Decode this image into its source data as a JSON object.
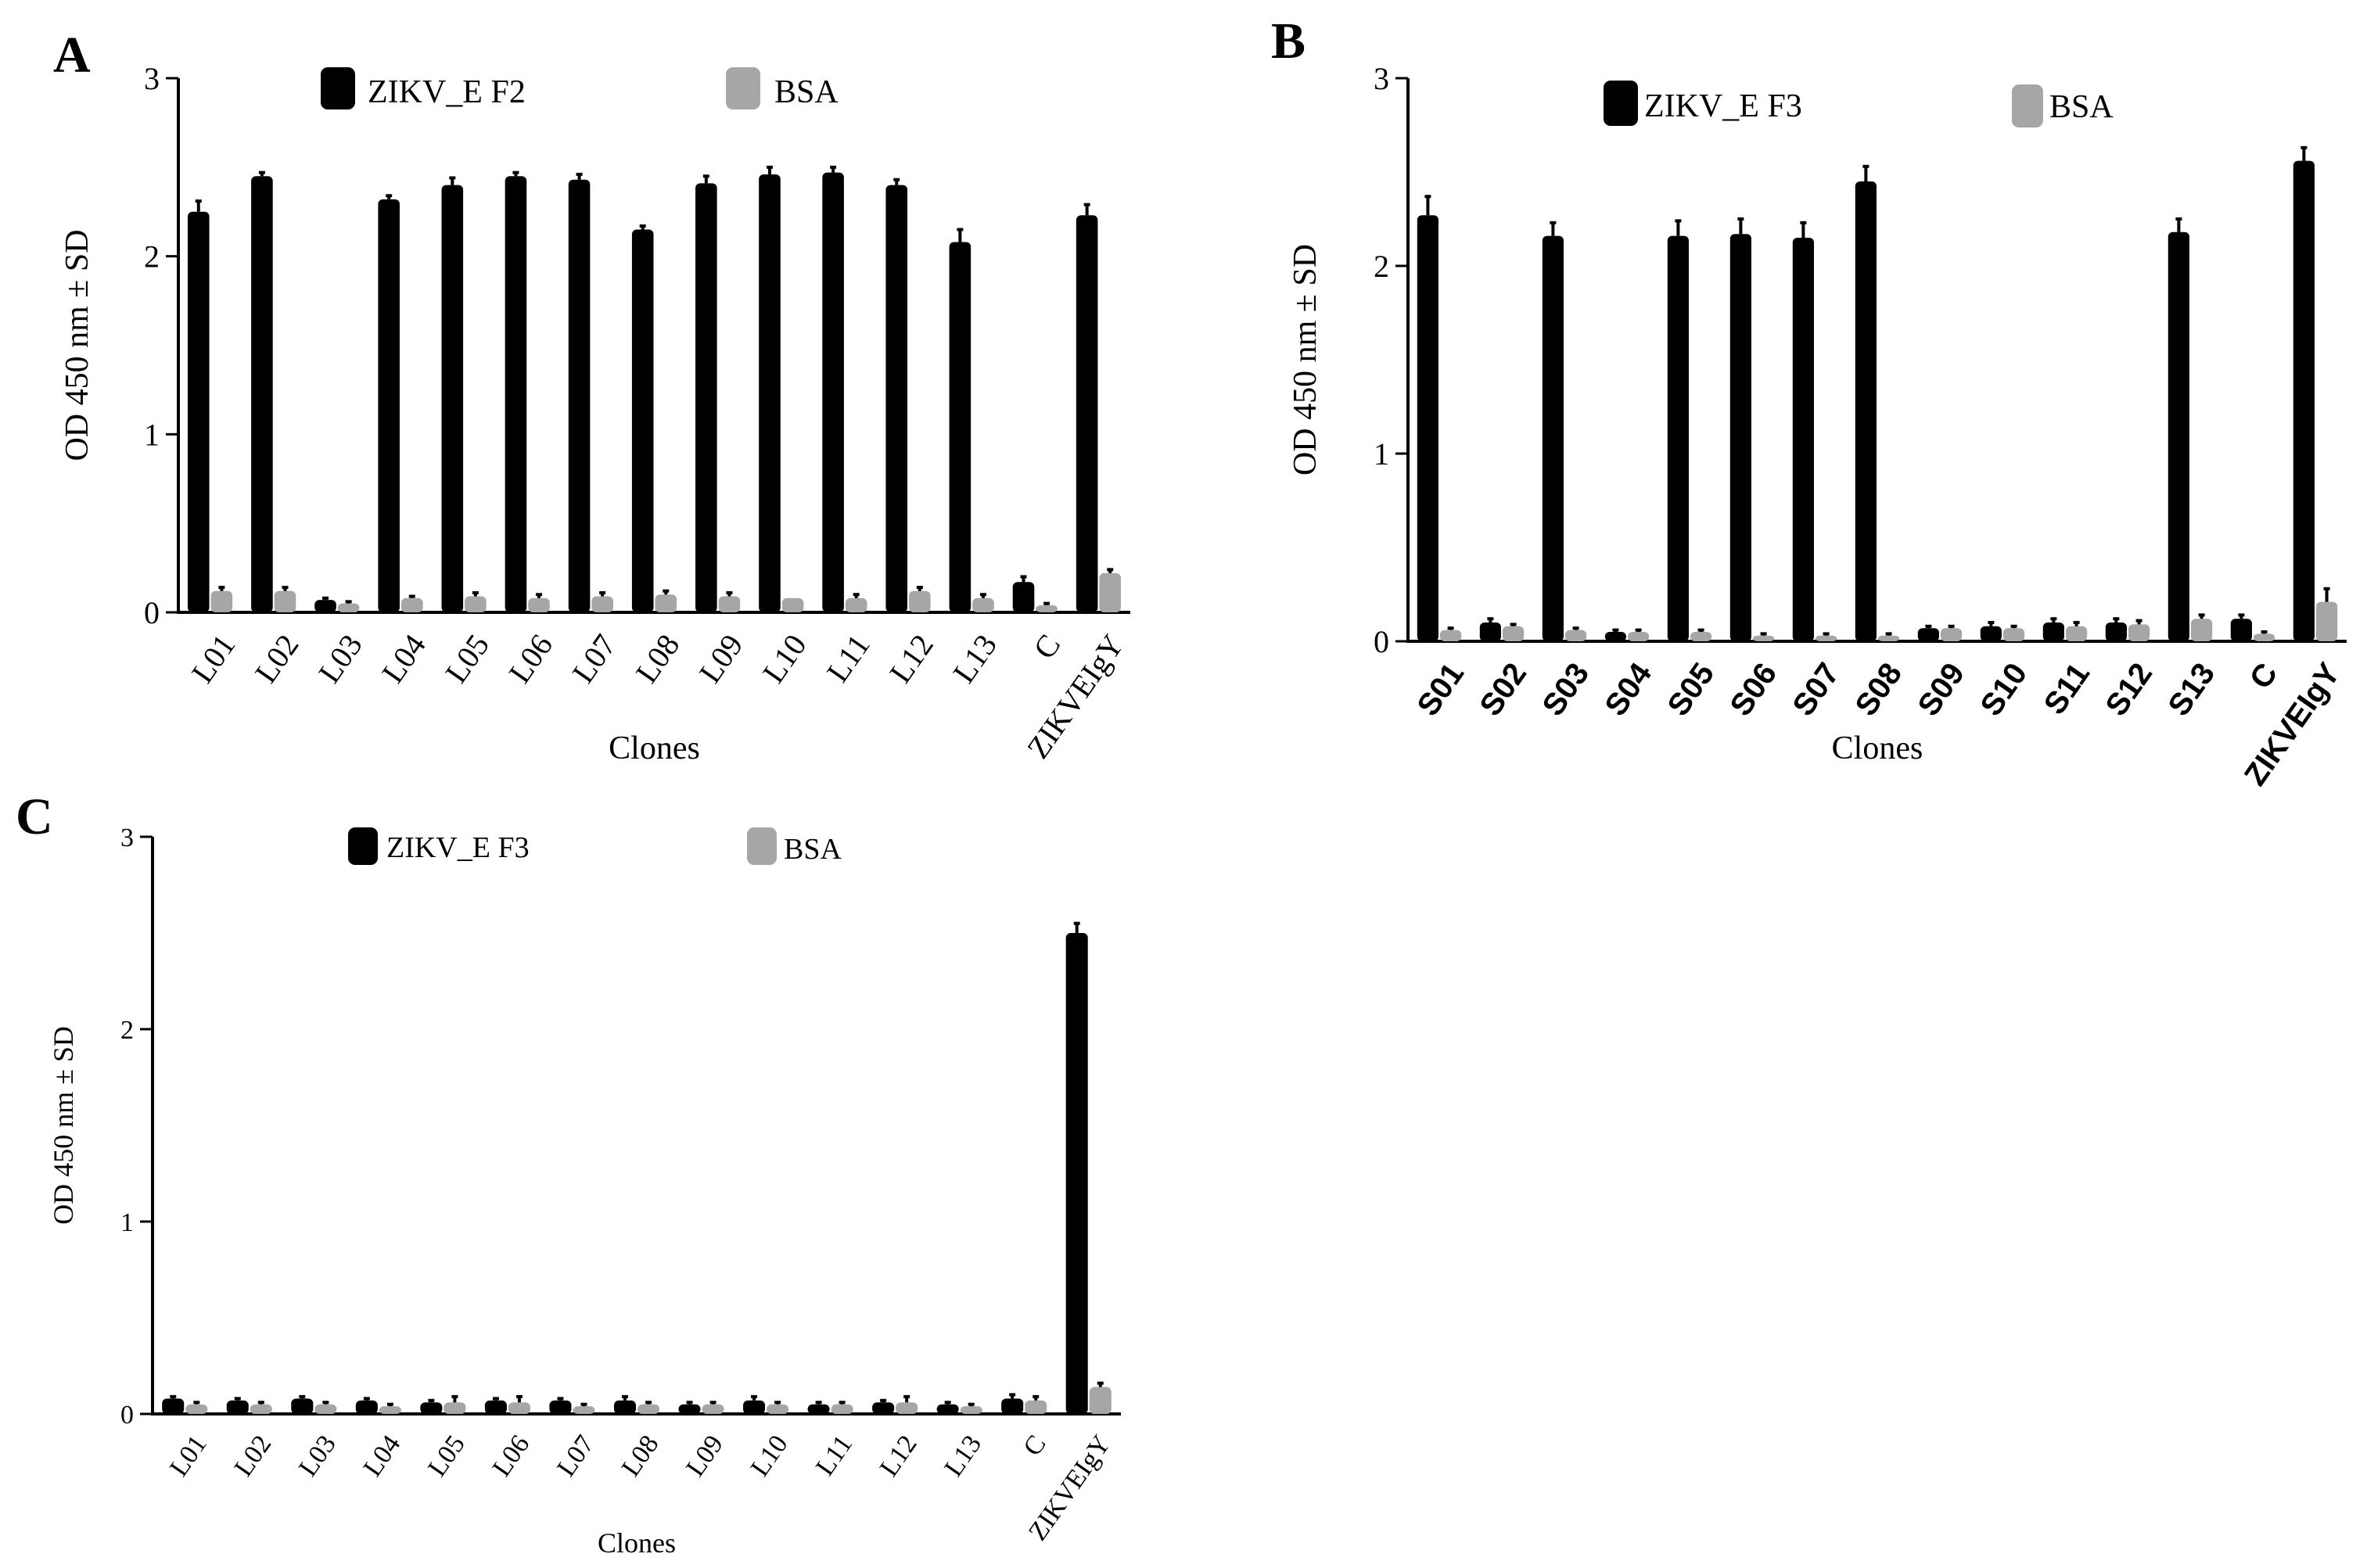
{
  "colors": {
    "primary": "#000000",
    "bsa": "#a6a6a6",
    "axis": "#000000",
    "background": "#ffffff"
  },
  "chart_data": [
    {
      "panel": "A",
      "type": "bar",
      "title": "",
      "xlabel": "Clones",
      "ylabel": "OD 450 nm ± SD",
      "ylim": [
        0,
        3
      ],
      "yticks": [
        "0",
        "1",
        "2",
        "3"
      ],
      "tick_style": "serif",
      "categories": [
        "L01",
        "L02",
        "L03",
        "L04",
        "L05",
        "L06",
        "L07",
        "L08",
        "L09",
        "L10",
        "L11",
        "L12",
        "L13",
        "C",
        "ZIKVEIgY"
      ],
      "series": [
        {
          "name": "ZIKV_E F2",
          "color": "#000000",
          "values": [
            2.25,
            2.45,
            0.07,
            2.32,
            2.4,
            2.45,
            2.43,
            2.15,
            2.41,
            2.46,
            2.47,
            2.4,
            2.08,
            0.17,
            2.23
          ],
          "errors": [
            0.06,
            0.02,
            0.01,
            0.02,
            0.04,
            0.02,
            0.03,
            0.02,
            0.04,
            0.04,
            0.03,
            0.03,
            0.07,
            0.03,
            0.06
          ]
        },
        {
          "name": "BSA",
          "color": "#a6a6a6",
          "values": [
            0.12,
            0.12,
            0.05,
            0.08,
            0.09,
            0.08,
            0.09,
            0.1,
            0.09,
            0.08,
            0.08,
            0.12,
            0.08,
            0.04,
            0.22
          ],
          "errors": [
            0.02,
            0.02,
            0.01,
            0.01,
            0.02,
            0.02,
            0.02,
            0.02,
            0.02,
            0.0,
            0.02,
            0.02,
            0.02,
            0.01,
            0.02
          ]
        }
      ]
    },
    {
      "panel": "B",
      "type": "bar",
      "title": "",
      "xlabel": "Clones",
      "ylabel": "OD 450 nm ± SD",
      "ylim": [
        0,
        3
      ],
      "yticks": [
        "0",
        "1",
        "2",
        "3"
      ],
      "tick_style": "sans-bold",
      "categories": [
        "S01",
        "S02",
        "S03",
        "S04",
        "S05",
        "S06",
        "S07",
        "S08",
        "S09",
        "S10",
        "S11",
        "S12",
        "S13",
        "C",
        "ZIKVEIgY"
      ],
      "series": [
        {
          "name": "ZIKV_E F3",
          "color": "#000000",
          "values": [
            2.27,
            0.1,
            2.16,
            0.05,
            2.16,
            2.17,
            2.15,
            2.45,
            0.07,
            0.08,
            0.1,
            0.1,
            2.18,
            0.12,
            2.56
          ],
          "errors": [
            0.1,
            0.02,
            0.07,
            0.01,
            0.08,
            0.08,
            0.08,
            0.08,
            0.01,
            0.02,
            0.02,
            0.02,
            0.07,
            0.02,
            0.07
          ]
        },
        {
          "name": "BSA",
          "color": "#a6a6a6",
          "values": [
            0.06,
            0.08,
            0.06,
            0.05,
            0.05,
            0.03,
            0.03,
            0.03,
            0.07,
            0.07,
            0.08,
            0.09,
            0.12,
            0.04,
            0.21
          ],
          "errors": [
            0.01,
            0.01,
            0.01,
            0.01,
            0.01,
            0.01,
            0.01,
            0.01,
            0.01,
            0.01,
            0.02,
            0.02,
            0.02,
            0.01,
            0.07
          ]
        }
      ]
    },
    {
      "panel": "C",
      "type": "bar",
      "title": "",
      "xlabel": "Clones",
      "ylabel": "OD 450 nm ± SD",
      "ylim": [
        0,
        3
      ],
      "yticks": [
        "0",
        "1",
        "2",
        "3"
      ],
      "tick_style": "serif",
      "categories": [
        "L01",
        "L02",
        "L03",
        "L04",
        "L05",
        "L06",
        "L07",
        "L08",
        "L09",
        "L10",
        "L11",
        "L12",
        "L13",
        "C",
        "ZIKVEIgY"
      ],
      "series": [
        {
          "name": "ZIKV_E F3",
          "color": "#000000",
          "values": [
            0.08,
            0.07,
            0.08,
            0.07,
            0.06,
            0.07,
            0.07,
            0.07,
            0.05,
            0.07,
            0.05,
            0.06,
            0.05,
            0.08,
            2.5
          ],
          "errors": [
            0.01,
            0.01,
            0.01,
            0.01,
            0.01,
            0.01,
            0.01,
            0.02,
            0.01,
            0.02,
            0.01,
            0.01,
            0.01,
            0.02,
            0.05
          ]
        },
        {
          "name": "BSA",
          "color": "#a6a6a6",
          "values": [
            0.05,
            0.05,
            0.05,
            0.04,
            0.06,
            0.06,
            0.04,
            0.05,
            0.05,
            0.05,
            0.05,
            0.06,
            0.04,
            0.07,
            0.14
          ],
          "errors": [
            0.01,
            0.01,
            0.01,
            0.01,
            0.03,
            0.03,
            0.01,
            0.01,
            0.01,
            0.01,
            0.01,
            0.03,
            0.01,
            0.02,
            0.02
          ]
        }
      ]
    }
  ]
}
